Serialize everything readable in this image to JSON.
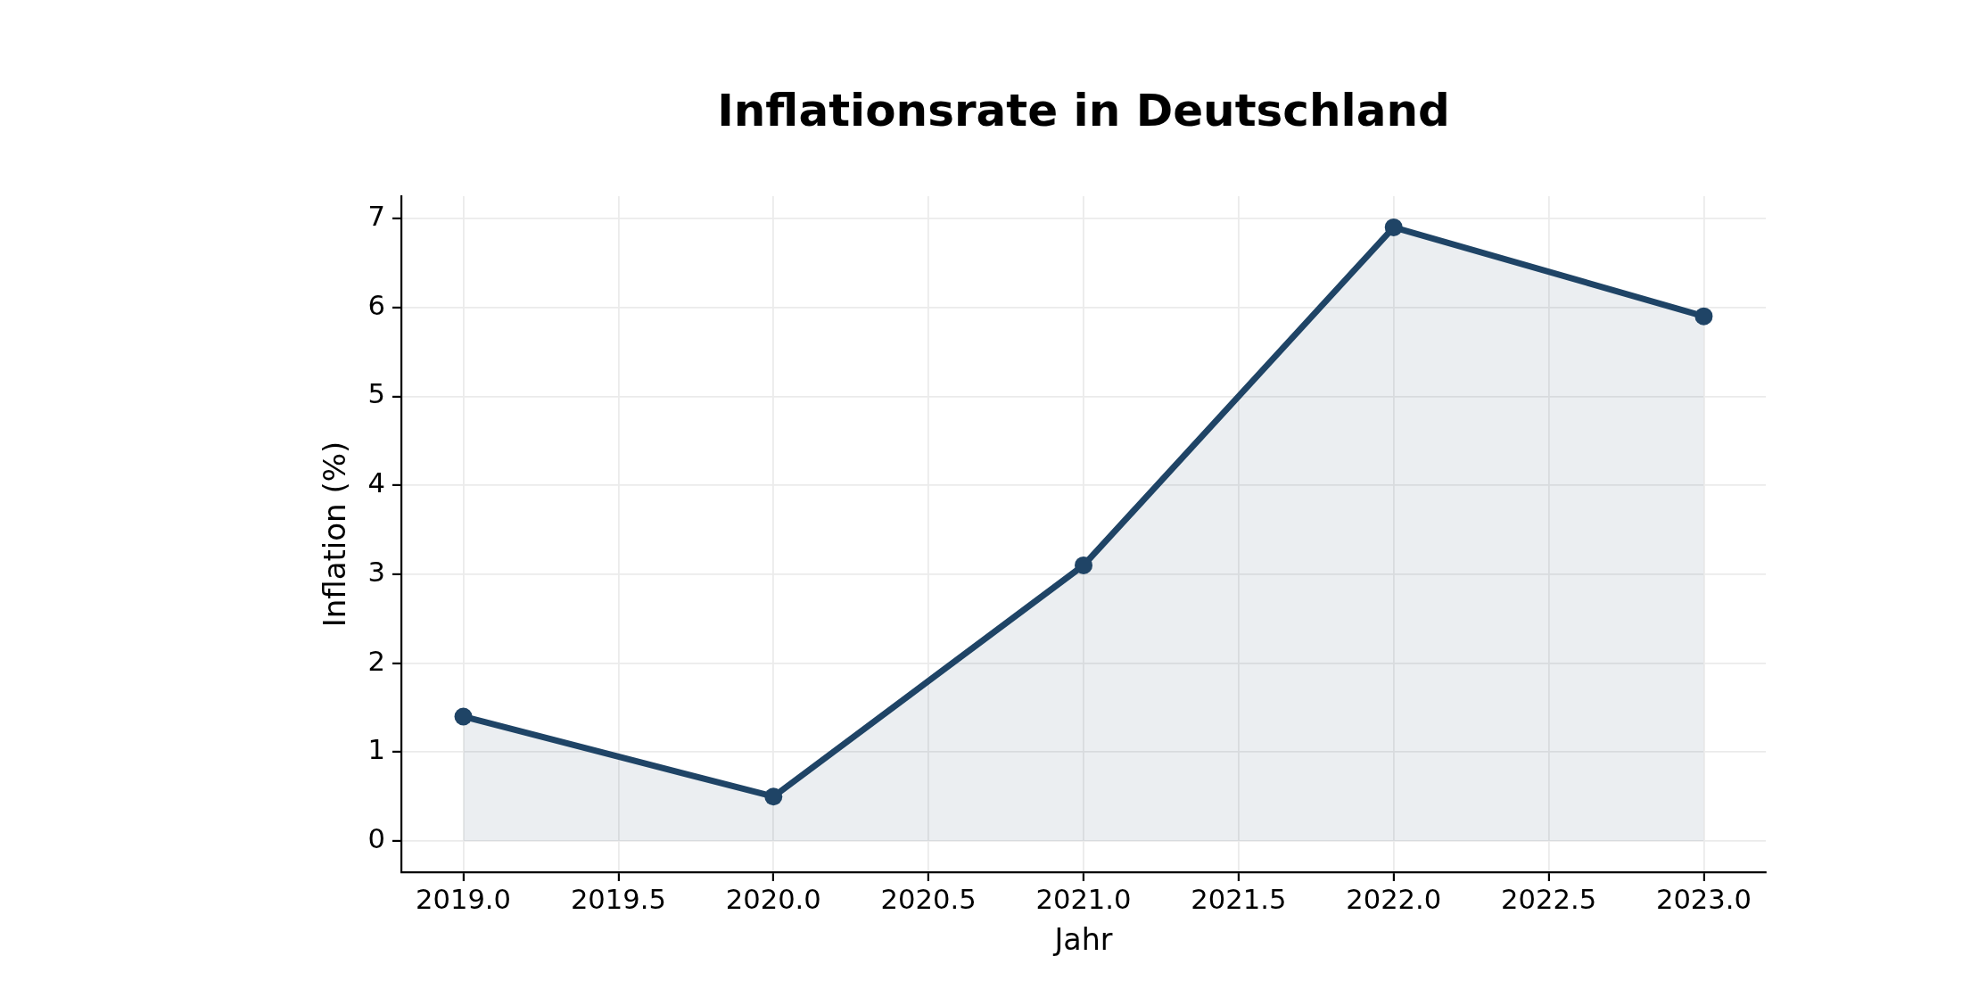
{
  "chart_data": {
    "type": "area",
    "title": "Inflationsrate in Deutschland",
    "xlabel": "Jahr",
    "ylabel": "Inflation (%)",
    "x": [
      2019,
      2020,
      2021,
      2022,
      2023
    ],
    "values": [
      1.4,
      0.5,
      3.1,
      6.9,
      5.9
    ],
    "color": "#1f4466",
    "xlim": [
      2018.8,
      2023.2
    ],
    "xticks": [
      {
        "value": 2019,
        "label": "2019.0"
      },
      {
        "value": 2019.5,
        "label": "2019.5"
      },
      {
        "value": 2020,
        "label": "2020.0"
      },
      {
        "value": 2020.5,
        "label": "2020.5"
      },
      {
        "value": 2021,
        "label": "2021.0"
      },
      {
        "value": 2021.5,
        "label": "2021.5"
      },
      {
        "value": 2022,
        "label": "2022.0"
      },
      {
        "value": 2022.5,
        "label": "2022.5"
      },
      {
        "value": 2023,
        "label": "2023.0"
      }
    ],
    "ylim": [
      -0.35,
      7.25
    ],
    "yticks": [
      0,
      1,
      2,
      3,
      4,
      5,
      6,
      7
    ],
    "grid": true,
    "marker": "circle",
    "line_style": "solid"
  }
}
